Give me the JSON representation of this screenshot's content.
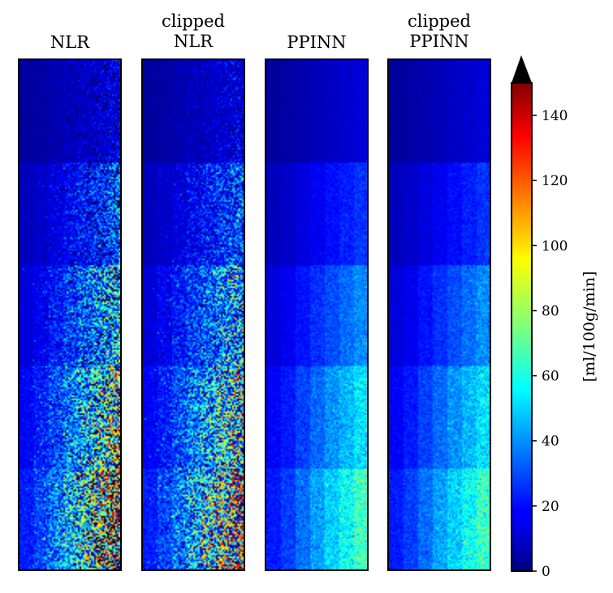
{
  "chart_data": {
    "type": "heatmap",
    "colormap": "jet",
    "under_color": "#000000",
    "panels": [
      {
        "title": "NLR",
        "noise": "high",
        "clipped": false,
        "invalid_pixels": true
      },
      {
        "title": "clipped\nNLR",
        "noise": "high",
        "clipped": true,
        "invalid_pixels": false
      },
      {
        "title": "PPINN",
        "noise": "low",
        "clipped": false,
        "invalid_pixels": false
      },
      {
        "title": "clipped\nPPINN",
        "noise": "low",
        "clipped": true,
        "invalid_pixels": false
      }
    ],
    "row_band_mean_cbf": [
      10,
      20,
      30,
      40,
      50
    ],
    "column_band_scale": [
      0.45,
      0.55,
      0.7,
      0.85,
      1.0,
      1.15,
      1.3
    ],
    "colorbar": {
      "label": "[ml/100g/min]",
      "vmin": 0,
      "vmax": 150,
      "ticks": [
        0,
        20,
        40,
        60,
        80,
        100,
        120,
        140
      ],
      "extend": "max"
    }
  }
}
